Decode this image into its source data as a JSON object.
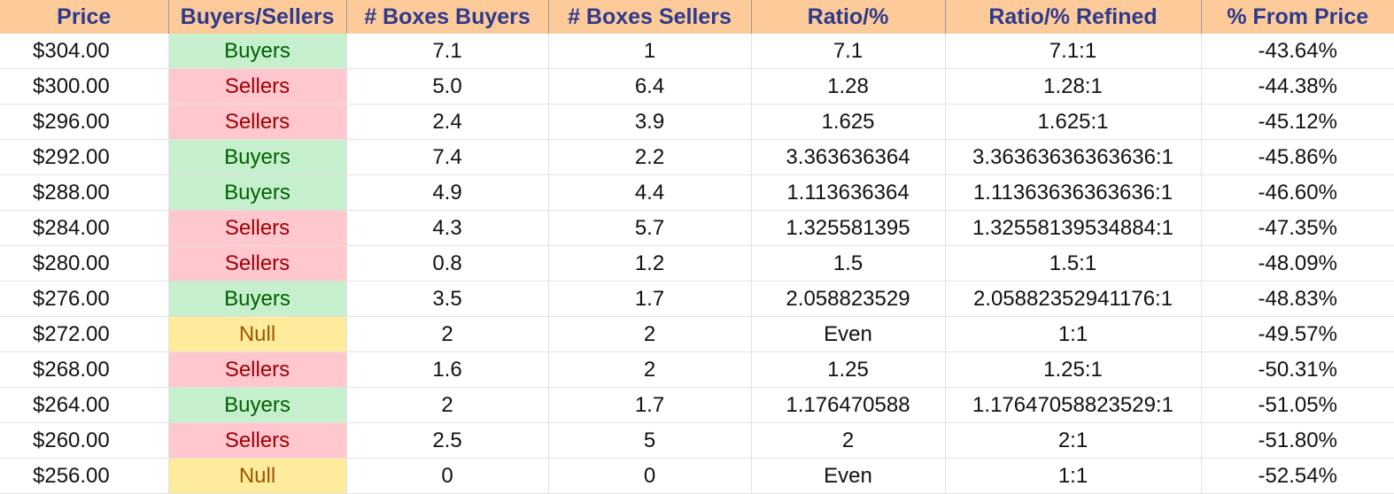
{
  "table": {
    "headers": [
      "Price",
      "Buyers/Sellers",
      "# Boxes Buyers",
      "# Boxes Sellers",
      "Ratio/%",
      "Ratio/% Refined",
      "% From Price"
    ],
    "rows": [
      [
        "$304.00",
        "Buyers",
        "7.1",
        "1",
        "7.1",
        "7.1:1",
        "-43.64%"
      ],
      [
        "$300.00",
        "Sellers",
        "5.0",
        "6.4",
        "1.28",
        "1.28:1",
        "-44.38%"
      ],
      [
        "$296.00",
        "Sellers",
        "2.4",
        "3.9",
        "1.625",
        "1.625:1",
        "-45.12%"
      ],
      [
        "$292.00",
        "Buyers",
        "7.4",
        "2.2",
        "3.363636364",
        "3.36363636363636:1",
        "-45.86%"
      ],
      [
        "$288.00",
        "Buyers",
        "4.9",
        "4.4",
        "1.113636364",
        "1.11363636363636:1",
        "-46.60%"
      ],
      [
        "$284.00",
        "Sellers",
        "4.3",
        "5.7",
        "1.325581395",
        "1.32558139534884:1",
        "-47.35%"
      ],
      [
        "$280.00",
        "Sellers",
        "0.8",
        "1.2",
        "1.5",
        "1.5:1",
        "-48.09%"
      ],
      [
        "$276.00",
        "Buyers",
        "3.5",
        "1.7",
        "2.058823529",
        "2.05882352941176:1",
        "-48.83%"
      ],
      [
        "$272.00",
        "Null",
        "2",
        "2",
        "Even",
        "1:1",
        "-49.57%"
      ],
      [
        "$268.00",
        "Sellers",
        "1.6",
        "2",
        "1.25",
        "1.25:1",
        "-50.31%"
      ],
      [
        "$264.00",
        "Buyers",
        "2",
        "1.7",
        "1.176470588",
        "1.17647058823529:1",
        "-51.05%"
      ],
      [
        "$260.00",
        "Sellers",
        "2.5",
        "5",
        "2",
        "2:1",
        "-51.80%"
      ],
      [
        "$256.00",
        "Null",
        "0",
        "0",
        "Even",
        "1:1",
        "-52.54%"
      ]
    ]
  },
  "colors": {
    "header_bg": "#fdcb9a",
    "header_text": "#2e3a8c",
    "buyers_bg": "#c6efce",
    "buyers_text": "#006100",
    "sellers_bg": "#ffc7ce",
    "sellers_text": "#9c0006",
    "null_bg": "#ffeb9c",
    "null_text": "#9c5700"
  }
}
